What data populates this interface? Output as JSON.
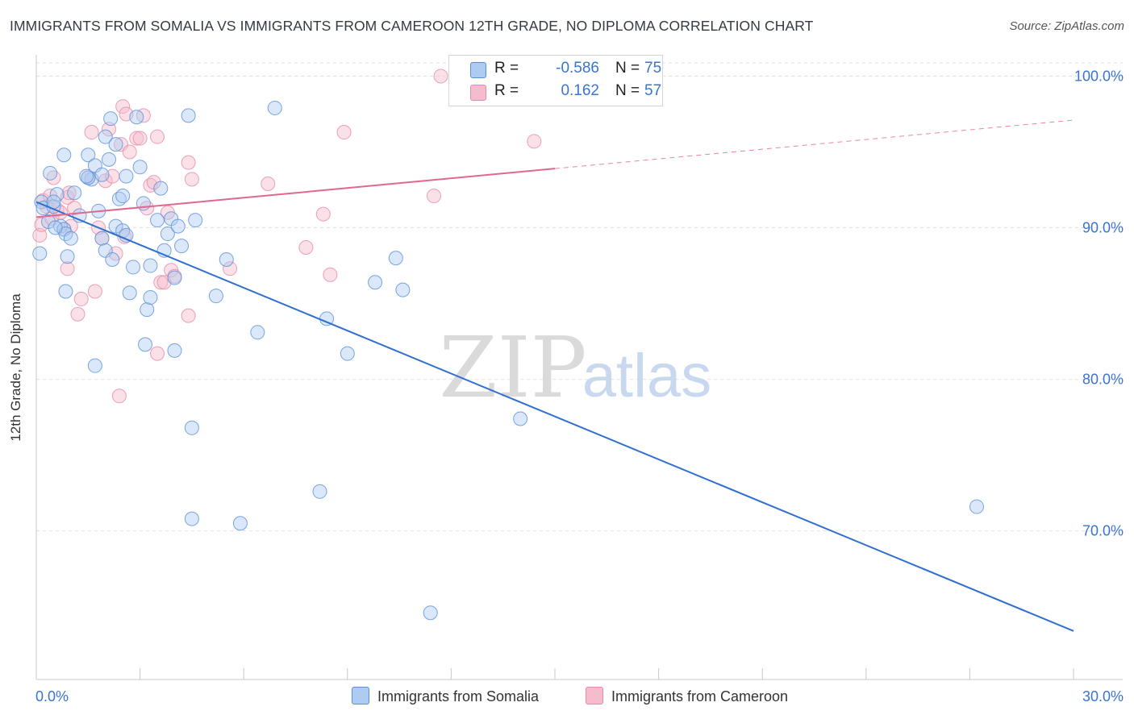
{
  "title": "IMMIGRANTS FROM SOMALIA VS IMMIGRANTS FROM CAMEROON 12TH GRADE, NO DIPLOMA CORRELATION CHART",
  "source": "Source: ZipAtlas.com",
  "watermark": {
    "zip": "ZIP",
    "atlas": "atlas"
  },
  "colors": {
    "somalia_fill": "#aecbf2",
    "somalia_stroke": "#5a90d8",
    "somalia_line": "#2f6fcf",
    "cameroon_fill": "#f5bccd",
    "cameroon_stroke": "#e78aa8",
    "cameroon_line": "#e0688f",
    "tick_label": "#3a74d0",
    "grid": "#e2e2e2"
  },
  "legend": {
    "rows": [
      {
        "r_label": "R =",
        "r_value": "-0.586",
        "n_label": "N =",
        "n_value": "75"
      },
      {
        "r_label": "R =",
        "r_value": "0.162",
        "n_label": "N =",
        "n_value": "57"
      }
    ]
  },
  "bottom_legend": [
    "Immigrants from Somalia",
    "Immigrants from Cameroon"
  ],
  "chart_data": {
    "type": "scatter",
    "title": "IMMIGRANTS FROM SOMALIA VS IMMIGRANTS FROM CAMEROON 12TH GRADE, NO DIPLOMA CORRELATION CHART",
    "xlabel": "",
    "ylabel": "12th Grade, No Diploma",
    "xlim": [
      0,
      30
    ],
    "ylim": [
      60.2,
      101.3
    ],
    "x_tick_labels": [
      "0.0%",
      "30.0%"
    ],
    "y_ticks": [
      70,
      80,
      90,
      100
    ],
    "y_tick_labels": [
      "70.0%",
      "80.0%",
      "90.0%",
      "100.0%"
    ],
    "grid": true,
    "legend_position": "top-center",
    "series": [
      {
        "name": "Immigrants from Somalia",
        "r": -0.586,
        "n": 75,
        "trend": {
          "x": [
            0,
            30
          ],
          "y": [
            91.7,
            63.4
          ],
          "dashed_extension": false
        },
        "points": [
          [
            0.15,
            91.7
          ],
          [
            0.2,
            91.3
          ],
          [
            0.35,
            90.4
          ],
          [
            0.1,
            88.3
          ],
          [
            0.4,
            93.6
          ],
          [
            0.5,
            91.4
          ],
          [
            0.6,
            92.2
          ],
          [
            0.7,
            90.1
          ],
          [
            0.8,
            89.9
          ],
          [
            0.85,
            89.6
          ],
          [
            0.9,
            88.1
          ],
          [
            1.0,
            89.3
          ],
          [
            1.1,
            92.3
          ],
          [
            0.85,
            85.8
          ],
          [
            0.8,
            94.8
          ],
          [
            1.5,
            94.8
          ],
          [
            1.7,
            94.1
          ],
          [
            1.6,
            93.2
          ],
          [
            1.5,
            93.3
          ],
          [
            1.9,
            93.5
          ],
          [
            2.1,
            94.5
          ],
          [
            2.0,
            96.0
          ],
          [
            2.3,
            95.5
          ],
          [
            1.8,
            91.1
          ],
          [
            1.9,
            89.3
          ],
          [
            2.0,
            88.5
          ],
          [
            2.2,
            87.9
          ],
          [
            2.3,
            90.1
          ],
          [
            2.5,
            89.8
          ],
          [
            2.6,
            89.5
          ],
          [
            2.4,
            91.9
          ],
          [
            2.5,
            92.1
          ],
          [
            2.6,
            93.4
          ],
          [
            2.8,
            87.4
          ],
          [
            2.7,
            85.7
          ],
          [
            3.0,
            94.0
          ],
          [
            3.1,
            91.6
          ],
          [
            3.2,
            84.6
          ],
          [
            3.3,
            85.4
          ],
          [
            3.3,
            87.5
          ],
          [
            3.5,
            90.5
          ],
          [
            3.6,
            92.6
          ],
          [
            3.7,
            88.5
          ],
          [
            3.8,
            89.6
          ],
          [
            3.9,
            90.6
          ],
          [
            4.0,
            86.7
          ],
          [
            4.1,
            90.1
          ],
          [
            4.2,
            88.8
          ],
          [
            4.4,
            97.4
          ],
          [
            4.0,
            81.9
          ],
          [
            4.6,
            90.5
          ],
          [
            4.5,
            76.8
          ],
          [
            4.5,
            70.8
          ],
          [
            5.2,
            85.5
          ],
          [
            5.5,
            87.9
          ],
          [
            5.9,
            70.5
          ],
          [
            6.4,
            83.1
          ],
          [
            6.9,
            97.9
          ],
          [
            2.15,
            97.2
          ],
          [
            1.7,
            80.9
          ],
          [
            3.15,
            82.3
          ],
          [
            8.4,
            84.0
          ],
          [
            8.2,
            72.6
          ],
          [
            9.0,
            81.7
          ],
          [
            9.8,
            86.4
          ],
          [
            10.4,
            88.0
          ],
          [
            10.6,
            85.9
          ],
          [
            11.4,
            64.6
          ],
          [
            14.0,
            77.4
          ],
          [
            27.2,
            71.6
          ],
          [
            0.55,
            90.0
          ],
          [
            1.25,
            90.8
          ],
          [
            1.45,
            93.4
          ],
          [
            2.9,
            97.3
          ],
          [
            0.5,
            91.7
          ]
        ]
      },
      {
        "name": "Immigrants from Cameroon",
        "r": 0.162,
        "n": 57,
        "trend": {
          "x": [
            0,
            15
          ],
          "y": [
            90.7,
            93.9
          ],
          "dashed_extension": true,
          "dashed_to": {
            "x": 30,
            "y": 97.1
          }
        },
        "points": [
          [
            0.1,
            89.5
          ],
          [
            0.15,
            90.2
          ],
          [
            0.2,
            91.8
          ],
          [
            0.3,
            91.4
          ],
          [
            0.4,
            92.1
          ],
          [
            0.45,
            90.6
          ],
          [
            0.5,
            93.3
          ],
          [
            0.6,
            91.2
          ],
          [
            0.7,
            91.0
          ],
          [
            0.9,
            92.0
          ],
          [
            0.95,
            92.3
          ],
          [
            0.8,
            89.9
          ],
          [
            0.9,
            87.3
          ],
          [
            1.1,
            91.3
          ],
          [
            1.2,
            84.3
          ],
          [
            1.3,
            85.3
          ],
          [
            1.5,
            93.3
          ],
          [
            1.6,
            96.3
          ],
          [
            1.7,
            85.8
          ],
          [
            1.8,
            90.0
          ],
          [
            1.9,
            89.3
          ],
          [
            2.0,
            93.1
          ],
          [
            2.1,
            96.5
          ],
          [
            2.2,
            93.4
          ],
          [
            2.3,
            88.3
          ],
          [
            2.45,
            95.5
          ],
          [
            2.5,
            98.0
          ],
          [
            2.6,
            97.5
          ],
          [
            2.7,
            95.0
          ],
          [
            2.9,
            95.9
          ],
          [
            3.0,
            95.9
          ],
          [
            3.1,
            97.4
          ],
          [
            3.2,
            91.3
          ],
          [
            3.3,
            92.8
          ],
          [
            3.4,
            93.0
          ],
          [
            3.5,
            81.7
          ],
          [
            3.6,
            86.4
          ],
          [
            3.7,
            86.4
          ],
          [
            3.8,
            91.0
          ],
          [
            3.9,
            87.2
          ],
          [
            4.0,
            86.8
          ],
          [
            4.4,
            94.3
          ],
          [
            4.5,
            93.2
          ],
          [
            4.4,
            84.2
          ],
          [
            5.6,
            87.3
          ],
          [
            6.7,
            92.9
          ],
          [
            7.8,
            88.7
          ],
          [
            8.3,
            90.9
          ],
          [
            8.5,
            86.9
          ],
          [
            8.9,
            96.3
          ],
          [
            11.5,
            92.1
          ],
          [
            11.7,
            100.0
          ],
          [
            14.4,
            95.7
          ],
          [
            2.4,
            78.9
          ],
          [
            1.0,
            90.1
          ],
          [
            3.5,
            96.0
          ],
          [
            2.55,
            89.4
          ]
        ]
      }
    ]
  }
}
